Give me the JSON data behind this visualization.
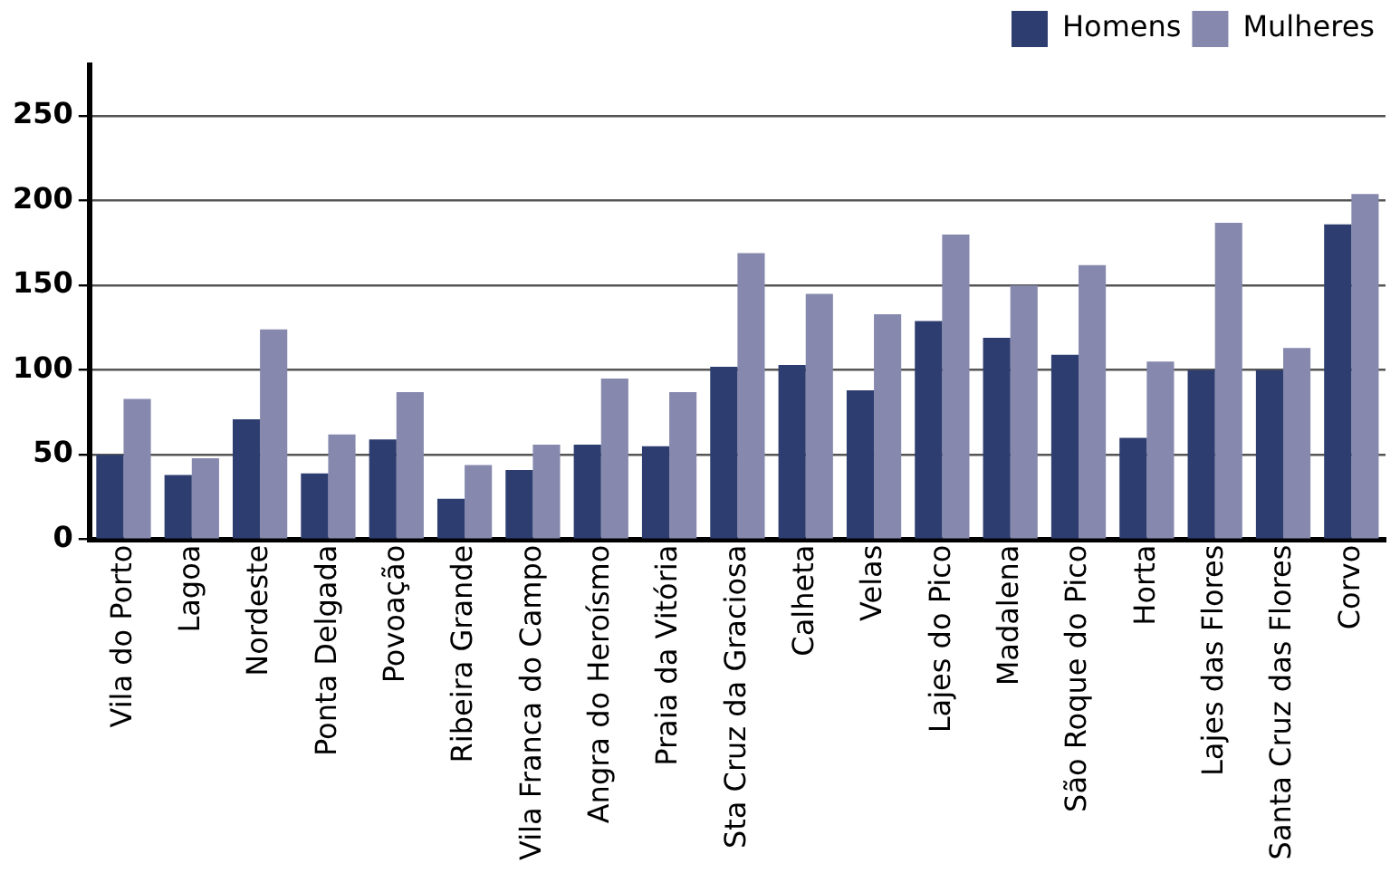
{
  "chart_data": {
    "type": "bar",
    "categories": [
      "Vila do Porto",
      "Lagoa",
      "Nordeste",
      "Ponta Delgada",
      "Povoação",
      "Ribeira Grande",
      "Vila Franca do Campo",
      "Angra do Heroísmo",
      "Praia da Vitória",
      "Sta Cruz da Graciosa",
      "Calheta",
      "Velas",
      "Lajes do Pico",
      "Madalena",
      "São Roque do Pico",
      "Horta",
      "Lajes das Flores",
      "Santa Cruz das Flores",
      "Corvo"
    ],
    "series": [
      {
        "name": "Homens",
        "color": "#2e3d70",
        "values": [
          50,
          38,
          71,
          39,
          59,
          24,
          41,
          56,
          55,
          102,
          103,
          88,
          129,
          119,
          109,
          60,
          100,
          100,
          186
        ]
      },
      {
        "name": "Mulheres",
        "color": "#8689ad",
        "values": [
          83,
          48,
          124,
          62,
          87,
          44,
          56,
          95,
          87,
          169,
          145,
          133,
          180,
          150,
          162,
          105,
          187,
          113,
          204
        ]
      }
    ],
    "ylim": [
      0,
      280
    ],
    "yticks": [
      0,
      50,
      100,
      150,
      200,
      250
    ],
    "grid": "y",
    "legend": "top right"
  }
}
